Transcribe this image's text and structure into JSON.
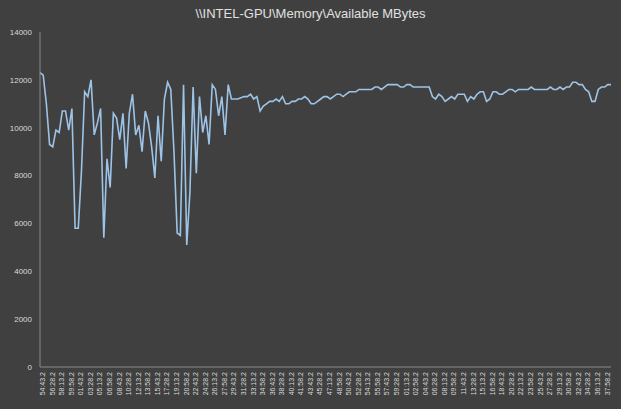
{
  "chart_data": {
    "type": "line",
    "title": "\\\\INTEL-GPU\\Memory\\Available MBytes",
    "categories": [
      "54:43.2",
      null,
      null,
      "56:28.2",
      null,
      null,
      "58:13.2",
      null,
      null,
      "59:58.2",
      null,
      null,
      "01:43.2",
      null,
      null,
      "03:28.2",
      null,
      null,
      "05:13.2",
      null,
      null,
      "06:58.2",
      null,
      null,
      "08:43.2",
      null,
      null,
      "10:28.2",
      null,
      null,
      "12:13.2",
      null,
      null,
      "13:58.2",
      null,
      null,
      "15:43.2",
      null,
      null,
      "17:28.2",
      null,
      null,
      "19:13.2",
      null,
      null,
      "20:58.2",
      null,
      null,
      "22:43.2",
      null,
      null,
      "24:28.2",
      null,
      null,
      "26:13.2",
      null,
      null,
      "27:58.2",
      null,
      null,
      "29:43.2",
      null,
      null,
      "31:28.2",
      null,
      null,
      "33:13.2",
      null,
      null,
      "34:58.2",
      null,
      null,
      "36:43.2",
      null,
      null,
      "38:28.2",
      null,
      null,
      "40:13.2",
      null,
      null,
      "41:58.2",
      null,
      null,
      "43:43.2",
      null,
      null,
      "45:28.2",
      null,
      null,
      "47:13.2",
      null,
      null,
      "48:58.2",
      null,
      null,
      "50:43.2",
      null,
      null,
      "52:28.2",
      null,
      null,
      "54:13.2",
      null,
      null,
      "55:58.2",
      null,
      null,
      "57:43.2",
      null,
      null,
      "59:28.2",
      null,
      null,
      "01:13.2",
      null,
      null,
      "02:58.2",
      null,
      null,
      "04:43.2",
      null,
      null,
      "06:28.2",
      null,
      null,
      "08:13.2",
      null,
      null,
      "09:58.2",
      null,
      null,
      "11:43.2",
      null,
      null,
      "13:28.2",
      null,
      null,
      "15:13.2",
      null,
      null,
      "16:58.2",
      null,
      null,
      "18:43.2",
      null,
      null,
      "20:28.2",
      null,
      null,
      "22:13.2",
      null,
      null,
      "23:58.2",
      null,
      null,
      "25:43.2",
      null,
      null,
      "27:28.2",
      null,
      null,
      "29:13.2",
      null,
      null,
      "30:58.2",
      null,
      null,
      "32:43.2",
      null,
      null,
      "34:28.2",
      null,
      null,
      "36:13.2",
      null,
      null,
      "37:58.2",
      null,
      null
    ],
    "values": [
      12300,
      12200,
      11000,
      9300,
      9200,
      9900,
      9800,
      10700,
      10700,
      9900,
      10800,
      5800,
      5800,
      8200,
      11500,
      11300,
      12000,
      9700,
      10200,
      10800,
      5400,
      8700,
      7500,
      10600,
      10400,
      9500,
      10600,
      8300,
      10600,
      11400,
      9700,
      10100,
      9000,
      10700,
      10200,
      9200,
      7900,
      10500,
      8600,
      11200,
      11900,
      11600,
      9000,
      5600,
      5500,
      11800,
      5100,
      7300,
      11700,
      8100,
      11300,
      9800,
      10500,
      9300,
      11800,
      11600,
      10500,
      11300,
      9700,
      11800,
      11200,
      11200,
      11200,
      11250,
      11300,
      11300,
      11400,
      11200,
      11300,
      10700,
      10900,
      11000,
      11100,
      11100,
      11200,
      11100,
      11300,
      11000,
      11000,
      11100,
      11100,
      11200,
      11200,
      11300,
      11200,
      11000,
      11000,
      11100,
      11200,
      11300,
      11300,
      11200,
      11300,
      11400,
      11400,
      11300,
      11400,
      11500,
      11500,
      11500,
      11600,
      11600,
      11600,
      11600,
      11600,
      11700,
      11700,
      11600,
      11700,
      11800,
      11800,
      11800,
      11800,
      11700,
      11700,
      11800,
      11800,
      11700,
      11700,
      11700,
      11700,
      11700,
      11700,
      11300,
      11200,
      11400,
      11300,
      11100,
      11200,
      11300,
      11200,
      11400,
      11400,
      11400,
      11100,
      11300,
      11200,
      11400,
      11500,
      11500,
      11100,
      11200,
      11500,
      11500,
      11400,
      11400,
      11500,
      11600,
      11600,
      11500,
      11600,
      11600,
      11600,
      11600,
      11700,
      11600,
      11600,
      11600,
      11600,
      11600,
      11700,
      11600,
      11600,
      11700,
      11600,
      11700,
      11700,
      11900,
      11900,
      11800,
      11800,
      11600,
      11500,
      11100,
      11100,
      11600,
      11700,
      11700,
      11800,
      11800
    ],
    "color": "#9dc3e6",
    "ylim": [
      0,
      14000
    ],
    "yticks": [
      0,
      2000,
      4000,
      6000,
      8000,
      10000,
      12000,
      14000
    ],
    "grid": false
  }
}
